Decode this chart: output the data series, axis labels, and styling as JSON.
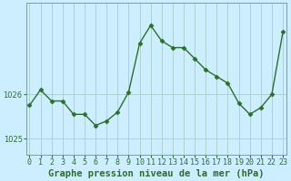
{
  "x": [
    0,
    1,
    2,
    3,
    4,
    5,
    6,
    7,
    8,
    9,
    10,
    11,
    12,
    13,
    14,
    15,
    16,
    17,
    18,
    19,
    20,
    21,
    22,
    23
  ],
  "y": [
    1025.75,
    1026.1,
    1025.85,
    1025.85,
    1025.55,
    1025.55,
    1025.3,
    1025.4,
    1025.6,
    1026.05,
    1027.15,
    1027.55,
    1027.2,
    1027.05,
    1027.05,
    1026.8,
    1026.55,
    1026.4,
    1026.25,
    1025.8,
    1025.55,
    1025.7,
    1026.0,
    1027.4
  ],
  "line_color": "#2d6e2d",
  "marker": "D",
  "marker_size": 2.5,
  "bg_color": "#cceeff",
  "plot_bg_color": "#cceeff",
  "grid_color": "#aacccc",
  "title": "Graphe pression niveau de la mer (hPa)",
  "yticks": [
    1025,
    1026
  ],
  "ylim": [
    1024.65,
    1028.05
  ],
  "xlim": [
    -0.3,
    23.3
  ],
  "title_fontsize": 7.5,
  "tick_fontsize": 6.0,
  "linewidth": 1.0
}
